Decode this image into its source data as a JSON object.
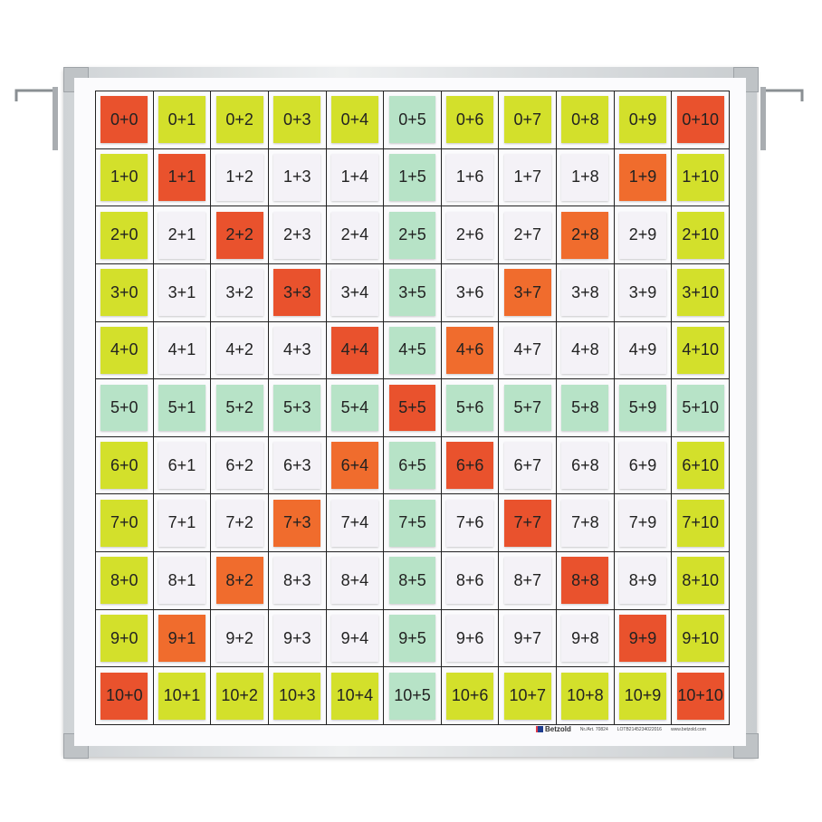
{
  "colors": {
    "yellow": "#d3e02b",
    "green": "#b7e3c7",
    "red": "#e9522d",
    "orange": "#f06c2d",
    "white": "#f4f2f7",
    "frame": "#d6d9db"
  },
  "footer": {
    "brand": "Betzold",
    "article": "Nr./Art. 70824",
    "lot": "LOTB2145234022016",
    "url": "www.betzold.com"
  },
  "grid": {
    "labels": [
      [
        "0+0",
        "0+1",
        "0+2",
        "0+3",
        "0+4",
        "0+5",
        "0+6",
        "0+7",
        "0+8",
        "0+9",
        "0+10"
      ],
      [
        "1+0",
        "1+1",
        "1+2",
        "1+3",
        "1+4",
        "1+5",
        "1+6",
        "1+7",
        "1+8",
        "1+9",
        "1+10"
      ],
      [
        "2+0",
        "2+1",
        "2+2",
        "2+3",
        "2+4",
        "2+5",
        "2+6",
        "2+7",
        "2+8",
        "2+9",
        "2+10"
      ],
      [
        "3+0",
        "3+1",
        "3+2",
        "3+3",
        "3+4",
        "3+5",
        "3+6",
        "3+7",
        "3+8",
        "3+9",
        "3+10"
      ],
      [
        "4+0",
        "4+1",
        "4+2",
        "4+3",
        "4+4",
        "4+5",
        "4+6",
        "4+7",
        "4+8",
        "4+9",
        "4+10"
      ],
      [
        "5+0",
        "5+1",
        "5+2",
        "5+3",
        "5+4",
        "5+5",
        "5+6",
        "5+7",
        "5+8",
        "5+9",
        "5+10"
      ],
      [
        "6+0",
        "6+1",
        "6+2",
        "6+3",
        "6+4",
        "6+5",
        "6+6",
        "6+7",
        "6+8",
        "6+9",
        "6+10"
      ],
      [
        "7+0",
        "7+1",
        "7+2",
        "7+3",
        "7+4",
        "7+5",
        "7+6",
        "7+7",
        "7+8",
        "7+9",
        "7+10"
      ],
      [
        "8+0",
        "8+1",
        "8+2",
        "8+3",
        "8+4",
        "8+5",
        "8+6",
        "8+7",
        "8+8",
        "8+9",
        "8+10"
      ],
      [
        "9+0",
        "9+1",
        "9+2",
        "9+3",
        "9+4",
        "9+5",
        "9+6",
        "9+7",
        "9+8",
        "9+9",
        "9+10"
      ],
      [
        "10+0",
        "10+1",
        "10+2",
        "10+3",
        "10+4",
        "10+5",
        "10+6",
        "10+7",
        "10+8",
        "10+9",
        "10+10"
      ]
    ],
    "card_colors": [
      [
        "red",
        "yellow",
        "yellow",
        "yellow",
        "yellow",
        "green",
        "yellow",
        "yellow",
        "yellow",
        "yellow",
        "red"
      ],
      [
        "yellow",
        "red",
        "white",
        "white",
        "white",
        "green",
        "white",
        "white",
        "white",
        "orange",
        "yellow"
      ],
      [
        "yellow",
        "white",
        "red",
        "white",
        "white",
        "green",
        "white",
        "white",
        "orange",
        "white",
        "yellow"
      ],
      [
        "yellow",
        "white",
        "white",
        "red",
        "white",
        "green",
        "white",
        "orange",
        "white",
        "white",
        "yellow"
      ],
      [
        "yellow",
        "white",
        "white",
        "white",
        "red",
        "green",
        "orange",
        "white",
        "white",
        "white",
        "yellow"
      ],
      [
        "green",
        "green",
        "green",
        "green",
        "green",
        "red",
        "green",
        "green",
        "green",
        "green",
        "green"
      ],
      [
        "yellow",
        "white",
        "white",
        "white",
        "orange",
        "green",
        "red",
        "white",
        "white",
        "white",
        "yellow"
      ],
      [
        "yellow",
        "white",
        "white",
        "orange",
        "white",
        "green",
        "white",
        "red",
        "white",
        "white",
        "yellow"
      ],
      [
        "yellow",
        "white",
        "orange",
        "white",
        "white",
        "green",
        "white",
        "white",
        "red",
        "white",
        "yellow"
      ],
      [
        "yellow",
        "orange",
        "white",
        "white",
        "white",
        "green",
        "white",
        "white",
        "white",
        "red",
        "yellow"
      ],
      [
        "red",
        "yellow",
        "yellow",
        "yellow",
        "yellow",
        "green",
        "yellow",
        "yellow",
        "yellow",
        "yellow",
        "red"
      ]
    ]
  }
}
